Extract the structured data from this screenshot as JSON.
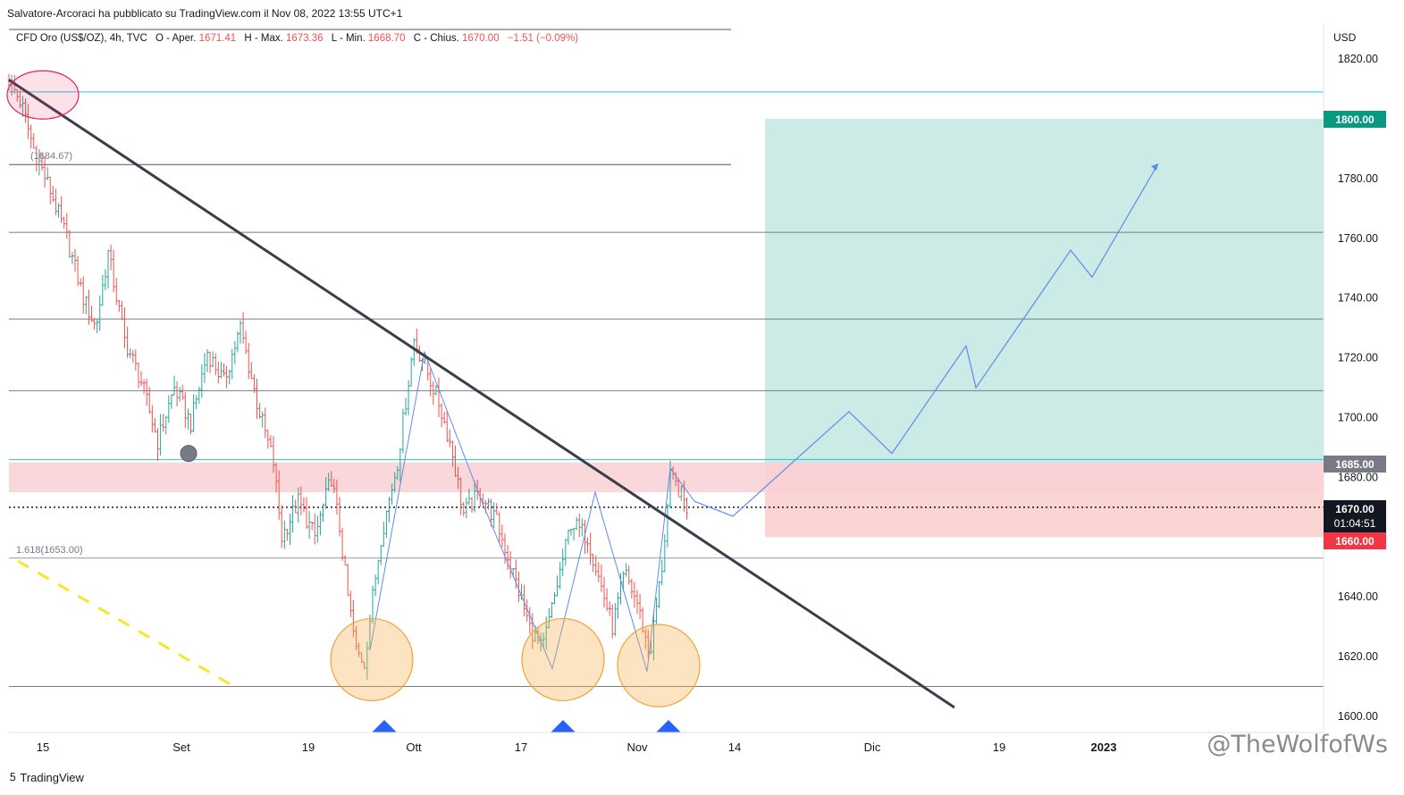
{
  "publisher_line": "Salvatore-Arcoraci ha pubblicato su TradingView.com il Nov 08, 2022 13:55 UTC+1",
  "legend": {
    "symbol": "CFD Oro (US$/OZ), 4h, TVC",
    "open_label": "O - Aper.",
    "open": "1671.41",
    "high_label": "H - Max.",
    "high": "1673.36",
    "low_label": "L - Min.",
    "low": "1668.70",
    "close_label": "C - Chius.",
    "close": "1670.00",
    "change": "−1.51 (−0.09%)"
  },
  "currency": "USD",
  "fib_labels": {
    "upper": "(1684.67)",
    "lower": "1.618(1653.00)"
  },
  "price_tags": {
    "target": "1800.00",
    "entry": "1685.00",
    "last": "1670.00",
    "countdown": "01:04:51",
    "stop": "1660.00"
  },
  "footer": {
    "brand": "TradingView"
  },
  "watermark": "@TheWolfofWs",
  "colors": {
    "up": "#26a69a",
    "down": "#ef5350",
    "trendline": "#3a3d4a",
    "projection": "#5b8def",
    "target_zone": "#cceae6",
    "stop_zone": "#fbd4d4",
    "resistance_band": "#f9d0d4",
    "circles": "#f2a33a",
    "yellow_dash": "#f7e62a"
  },
  "chart_data": {
    "type": "candlestick",
    "timeframe": "4h",
    "y_axis": {
      "min": 1600,
      "max": 1820,
      "ticks": [
        "1820.00",
        "1800.00",
        "1780.00",
        "1760.00",
        "1740.00",
        "1720.00",
        "1700.00",
        "1680.00",
        "1640.00",
        "1620.00",
        "1600.00"
      ]
    },
    "x_axis": {
      "ticks": [
        "15",
        "Set",
        "19",
        "Ott",
        "17",
        "Nov",
        "14",
        "Dic",
        "19",
        "2023"
      ]
    },
    "horizontal_levels": [
      1809,
      1784.67,
      1762,
      1733,
      1709,
      1653,
      1610
    ],
    "resistance_band": [
      1675,
      1685
    ],
    "target_zone": [
      1685,
      1800
    ],
    "stop_zone": [
      1660,
      1685
    ],
    "last_price": 1670,
    "trendline": {
      "start": [
        0,
        1813
      ],
      "end": [
        1,
        1603
      ]
    },
    "path_points": [
      {
        "day": 0,
        "price": 1813
      },
      {
        "day": 1.5,
        "price": 1805
      },
      {
        "day": 3,
        "price": 1790
      },
      {
        "day": 5,
        "price": 1776
      },
      {
        "day": 7,
        "price": 1760
      },
      {
        "day": 9,
        "price": 1740
      },
      {
        "day": 10.5,
        "price": 1730
      },
      {
        "day": 12,
        "price": 1755
      },
      {
        "day": 14,
        "price": 1726
      },
      {
        "day": 16,
        "price": 1712
      },
      {
        "day": 18,
        "price": 1692
      },
      {
        "day": 20,
        "price": 1710
      },
      {
        "day": 22,
        "price": 1698
      },
      {
        "day": 24,
        "price": 1722
      },
      {
        "day": 26,
        "price": 1712
      },
      {
        "day": 28,
        "price": 1730
      },
      {
        "day": 30,
        "price": 1705
      },
      {
        "day": 32,
        "price": 1685
      },
      {
        "day": 33,
        "price": 1660
      },
      {
        "day": 35,
        "price": 1672
      },
      {
        "day": 37,
        "price": 1660
      },
      {
        "day": 39,
        "price": 1680
      },
      {
        "day": 40,
        "price": 1663
      },
      {
        "day": 41,
        "price": 1640
      },
      {
        "day": 42,
        "price": 1622
      },
      {
        "day": 43,
        "price": 1618
      },
      {
        "day": 44,
        "price": 1640
      },
      {
        "day": 45,
        "price": 1660
      },
      {
        "day": 47,
        "price": 1685
      },
      {
        "day": 49,
        "price": 1726
      },
      {
        "day": 50.5,
        "price": 1716
      },
      {
        "day": 52,
        "price": 1705
      },
      {
        "day": 53.5,
        "price": 1690
      },
      {
        "day": 55,
        "price": 1668
      },
      {
        "day": 57,
        "price": 1675
      },
      {
        "day": 59,
        "price": 1665
      },
      {
        "day": 61,
        "price": 1648
      },
      {
        "day": 63,
        "price": 1630
      },
      {
        "day": 64.5,
        "price": 1622
      },
      {
        "day": 66,
        "price": 1640
      },
      {
        "day": 68,
        "price": 1665
      },
      {
        "day": 70,
        "price": 1660
      },
      {
        "day": 72,
        "price": 1640
      },
      {
        "day": 73,
        "price": 1630
      },
      {
        "day": 74.5,
        "price": 1648
      },
      {
        "day": 76,
        "price": 1638
      },
      {
        "day": 77.5,
        "price": 1620
      },
      {
        "day": 79,
        "price": 1650
      },
      {
        "day": 80,
        "price": 1680
      },
      {
        "day": 81,
        "price": 1676
      },
      {
        "day": 82,
        "price": 1670
      }
    ],
    "projection": [
      {
        "day": 82,
        "price": 1681
      },
      {
        "day": 85,
        "price": 1667
      },
      {
        "day": 95,
        "price": 1702
      },
      {
        "day": 98,
        "price": 1688
      },
      {
        "day": 106,
        "price": 1724
      },
      {
        "day": 107,
        "price": 1710
      },
      {
        "day": 115,
        "price": 1756
      },
      {
        "day": 117,
        "price": 1747
      },
      {
        "day": 123,
        "price": 1784
      }
    ]
  }
}
